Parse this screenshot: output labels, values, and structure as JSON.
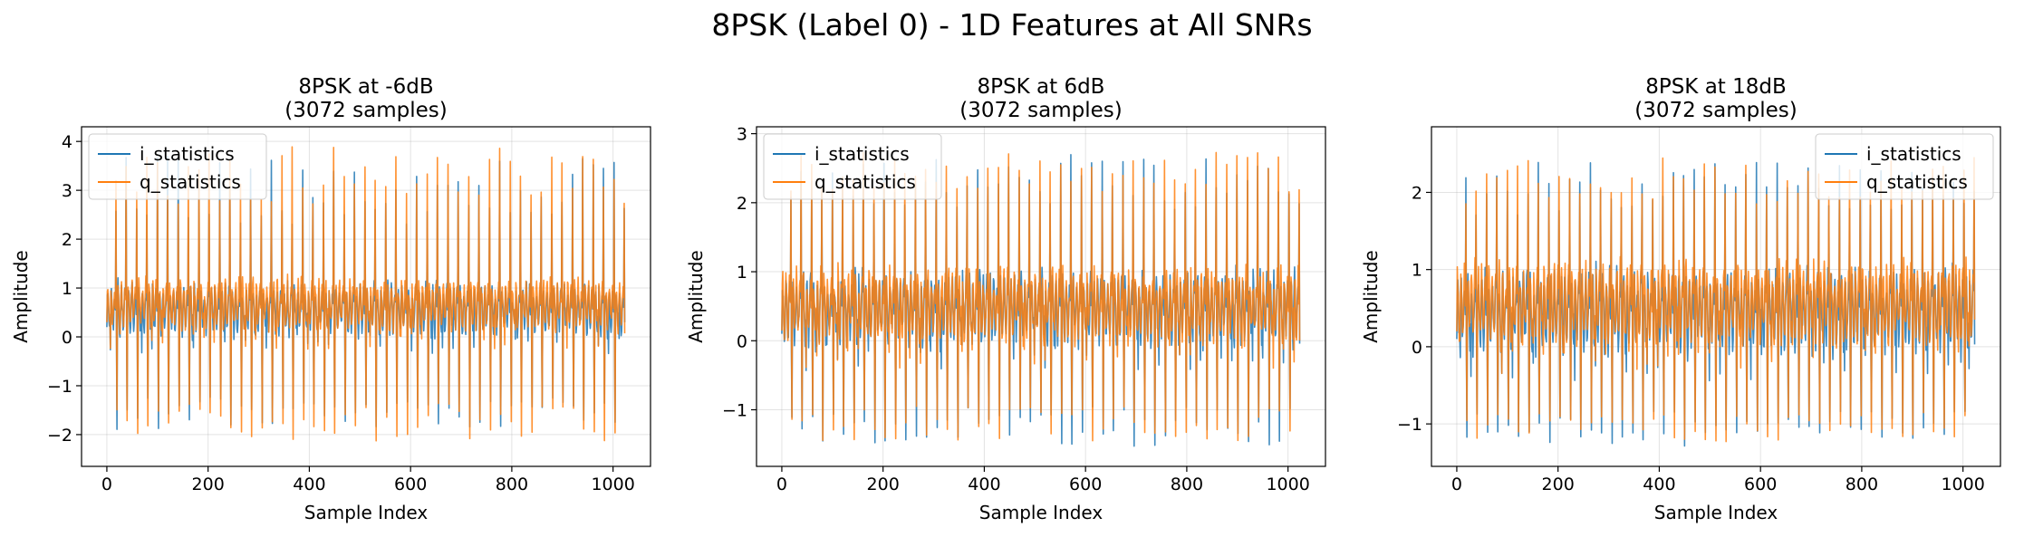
{
  "figure": {
    "title": "8PSK (Label 0) - 1D Features at All SNRs"
  },
  "chart_data": [
    {
      "type": "line",
      "title_line1": "8PSK at -6dB",
      "title_line2": "(3072 samples)",
      "xlabel": "Sample Index",
      "ylabel": "Amplitude",
      "xlim": [
        -50,
        1074
      ],
      "ylim": [
        -2.65,
        4.3
      ],
      "xticks": [
        0,
        200,
        400,
        600,
        800,
        1000
      ],
      "yticks": [
        -2,
        -1,
        0,
        1,
        2,
        3,
        4
      ],
      "grid": true,
      "legend_position": "upper-left",
      "n_points": 1024,
      "seed": 11,
      "period": 20.5,
      "series": [
        {
          "name": "i_statistics",
          "color": "#1f77b4",
          "peak_mean": 3.0,
          "peak_spread": 0.7,
          "trough_mean": -1.55,
          "trough_spread": 0.35,
          "base": 0.55
        },
        {
          "name": "q_statistics",
          "color": "#ff7f0e",
          "peak_mean": 3.3,
          "peak_spread": 0.6,
          "trough_mean": -1.75,
          "trough_spread": 0.4,
          "base": 0.65
        }
      ]
    },
    {
      "type": "line",
      "title_line1": "8PSK at 6dB",
      "title_line2": "(3072 samples)",
      "xlabel": "Sample Index",
      "ylabel": "Amplitude",
      "xlim": [
        -50,
        1074
      ],
      "ylim": [
        -1.82,
        3.1
      ],
      "xticks": [
        0,
        200,
        400,
        600,
        800,
        1000
      ],
      "yticks": [
        -1,
        0,
        1,
        2,
        3
      ],
      "grid": true,
      "legend_position": "upper-left",
      "n_points": 1024,
      "seed": 23,
      "period": 20.5,
      "series": [
        {
          "name": "i_statistics",
          "color": "#1f77b4",
          "peak_mean": 2.3,
          "peak_spread": 0.4,
          "trough_mean": -1.25,
          "trough_spread": 0.3,
          "base": 0.45
        },
        {
          "name": "q_statistics",
          "color": "#ff7f0e",
          "peak_mean": 2.45,
          "peak_spread": 0.3,
          "trough_mean": -1.2,
          "trough_spread": 0.25,
          "base": 0.5
        }
      ]
    },
    {
      "type": "line",
      "title_line1": "8PSK at 18dB",
      "title_line2": "(3072 samples)",
      "xlabel": "Sample Index",
      "ylabel": "Amplitude",
      "xlim": [
        -50,
        1074
      ],
      "ylim": [
        -1.55,
        2.85
      ],
      "xticks": [
        0,
        200,
        400,
        600,
        800,
        1000
      ],
      "yticks": [
        -1,
        0,
        1,
        2
      ],
      "grid": true,
      "legend_position": "upper-right",
      "n_points": 1024,
      "seed": 37,
      "period": 20.5,
      "series": [
        {
          "name": "i_statistics",
          "color": "#1f77b4",
          "peak_mean": 2.05,
          "peak_spread": 0.35,
          "trough_mean": -1.05,
          "trough_spread": 0.25,
          "base": 0.45
        },
        {
          "name": "q_statistics",
          "color": "#ff7f0e",
          "peak_mean": 2.15,
          "peak_spread": 0.3,
          "trough_mean": -1.05,
          "trough_spread": 0.2,
          "base": 0.55
        }
      ]
    }
  ]
}
